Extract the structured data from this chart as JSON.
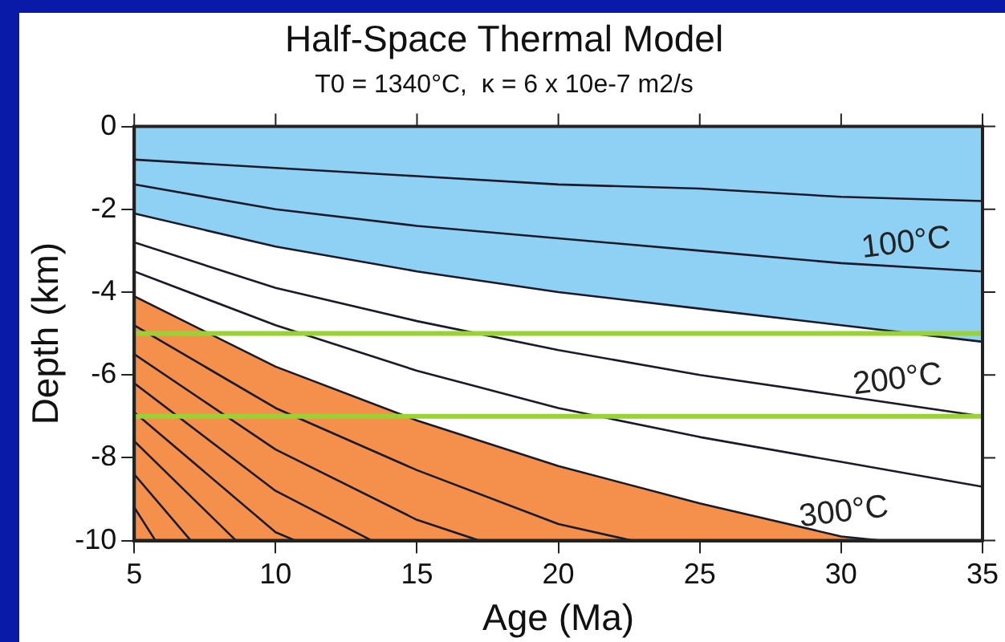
{
  "chart_data": {
    "type": "line",
    "title": "Half-Space Thermal Model",
    "subtitle": "T0 = 1340°C,  κ = 6 x 10e-7 m2/s",
    "xlabel": "Age (Ma)",
    "ylabel": "Depth (km)",
    "xlim": [
      5,
      35
    ],
    "xticks": [
      5,
      10,
      15,
      20,
      25,
      30,
      35
    ],
    "ylim": [
      -10,
      0
    ],
    "yticks": [
      0,
      -2,
      -4,
      -6,
      -8,
      -10
    ],
    "grid": false,
    "legend": false,
    "marker": "none",
    "line_style": "solid",
    "series": [
      {
        "type": "area",
        "color": "#8fd0f5",
        "x": [
          5,
          10,
          15,
          20,
          25,
          30,
          35
        ],
        "values": [
          -2.1,
          -2.9,
          -3.5,
          -4.0,
          -4.4,
          -4.8,
          -5.2
        ]
      },
      {
        "type": "area",
        "color": "#f4904c",
        "x": [
          5,
          5,
          10,
          15,
          20,
          25,
          30,
          31.4
        ],
        "values": [
          -10,
          -4.1,
          -5.8,
          -7.1,
          -8.2,
          -9.1,
          -9.9,
          -10
        ]
      },
      {
        "type": "line",
        "color": "#1a1a2a",
        "x": [
          5,
          10,
          15,
          20,
          25,
          30,
          35
        ],
        "values": [
          -0.8,
          -1.0,
          -1.2,
          -1.4,
          -1.5,
          -1.7,
          -1.8
        ]
      },
      {
        "type": "line",
        "color": "#1a1a2a",
        "x": [
          5,
          10,
          15,
          20,
          25,
          30,
          35
        ],
        "values": [
          -1.4,
          -2.0,
          -2.4,
          -2.7,
          -3.0,
          -3.3,
          -3.5
        ]
      },
      {
        "type": "line",
        "color": "#1a1a2a",
        "x": [
          5,
          10,
          15,
          20,
          25,
          30,
          35
        ],
        "values": [
          -2.8,
          -3.9,
          -4.7,
          -5.4,
          -6.0,
          -6.5,
          -7.0
        ]
      },
      {
        "type": "line",
        "color": "#1a1a2a",
        "x": [
          5,
          10,
          15,
          20,
          25,
          30,
          35
        ],
        "values": [
          -3.5,
          -4.8,
          -5.9,
          -6.8,
          -7.5,
          -8.1,
          -8.7
        ]
      },
      {
        "type": "line",
        "color": "#1a1a2a",
        "x": [
          5,
          10,
          15,
          20,
          22.6
        ],
        "values": [
          -4.8,
          -6.8,
          -8.3,
          -9.6,
          -10
        ]
      },
      {
        "type": "line",
        "color": "#1a1a2a",
        "x": [
          5,
          10,
          15,
          17.2
        ],
        "values": [
          -5.5,
          -7.8,
          -9.5,
          -10
        ]
      },
      {
        "type": "line",
        "color": "#1a1a2a",
        "x": [
          5,
          10,
          13.4
        ],
        "values": [
          -6.2,
          -8.8,
          -10
        ]
      },
      {
        "type": "line",
        "color": "#1a1a2a",
        "x": [
          5,
          10,
          10.7
        ],
        "values": [
          -6.9,
          -9.8,
          -10
        ]
      },
      {
        "type": "line",
        "color": "#1a1a2a",
        "x": [
          5,
          8.6
        ],
        "values": [
          -7.6,
          -10
        ]
      },
      {
        "type": "line",
        "color": "#1a1a2a",
        "x": [
          5,
          7.0
        ],
        "values": [
          -8.4,
          -10
        ]
      },
      {
        "type": "line",
        "color": "#1a1a2a",
        "x": [
          5,
          5.75
        ],
        "values": [
          -9.2,
          -10
        ]
      }
    ],
    "ref_lines": [
      {
        "axis": "y",
        "value": -5,
        "color": "#9ad234"
      },
      {
        "axis": "y",
        "value": -7,
        "color": "#9ad234"
      }
    ],
    "annotations": [
      {
        "text": "100°C",
        "x": 32.4,
        "y": -3.4
      },
      {
        "text": "200°C",
        "x": 32.1,
        "y": -6.7
      },
      {
        "text": "300°C",
        "x": 30.2,
        "y": -9.9
      }
    ]
  }
}
